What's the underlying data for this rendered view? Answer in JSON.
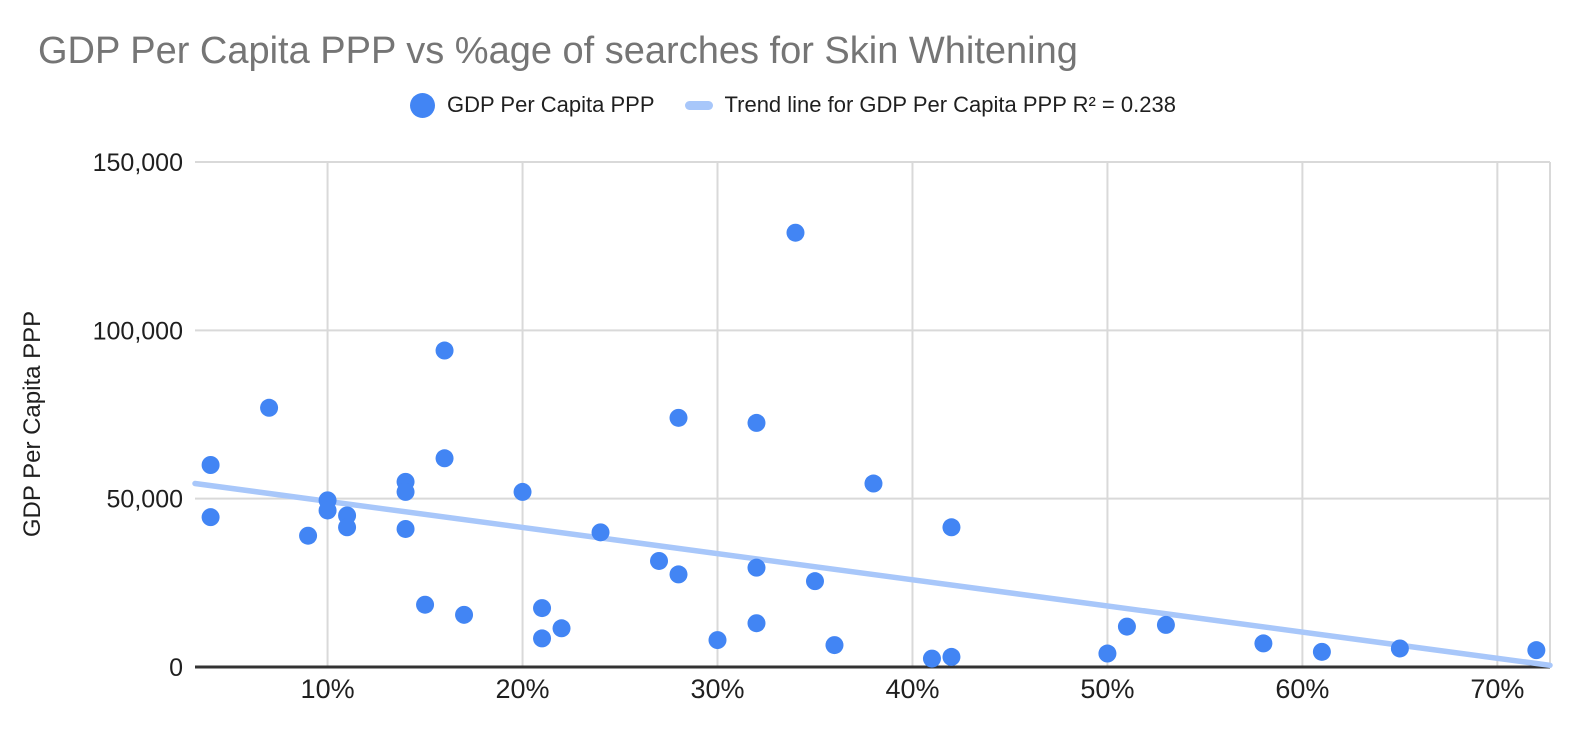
{
  "title": "GDP Per Capita PPP vs %age of searches for Skin Whitening",
  "legend": {
    "items": [
      {
        "type": "point",
        "label": "GDP Per Capita PPP"
      },
      {
        "type": "line",
        "label": "Trend line for GDP Per Capita PPP R² = 0.238"
      }
    ]
  },
  "colors": {
    "point": "#4285F4",
    "trend": "#A8C7FA",
    "title": "#757575",
    "tick_text": "#1f1f1f",
    "gridline": "#d9d9d9",
    "axis_line": "#333333",
    "background": "#ffffff"
  },
  "chart_data": {
    "type": "scatter",
    "title": "GDP Per Capita PPP vs %age of searches for Skin Whitening",
    "xlabel": "",
    "ylabel": "GDP Per Capita PPP",
    "x_unit": "% of searches for skin whitening",
    "xlim_percent": [
      3.2,
      72.7
    ],
    "ylim": [
      0,
      150000
    ],
    "x_ticks_percent": [
      10,
      20,
      30,
      40,
      50,
      60,
      70
    ],
    "x_tick_labels": [
      "10%",
      "20%",
      "30%",
      "40%",
      "50%",
      "60%",
      "70%"
    ],
    "y_ticks": [
      0,
      50000,
      100000,
      150000
    ],
    "y_tick_labels": [
      "0",
      "50,000",
      "100,000",
      "150,000"
    ],
    "grid": true,
    "legend_position": "top",
    "series": [
      {
        "name": "GDP Per Capita PPP",
        "color": "#4285F4",
        "points": [
          [
            4,
            60000
          ],
          [
            4,
            44500
          ],
          [
            7,
            77000
          ],
          [
            9,
            39000
          ],
          [
            10,
            49500
          ],
          [
            10,
            46500
          ],
          [
            11,
            45000
          ],
          [
            11,
            41500
          ],
          [
            14,
            55000
          ],
          [
            14,
            52000
          ],
          [
            14,
            41000
          ],
          [
            15,
            18500
          ],
          [
            16,
            94000
          ],
          [
            16,
            62000
          ],
          [
            17,
            15500
          ],
          [
            20,
            52000
          ],
          [
            21,
            17500
          ],
          [
            21,
            8500
          ],
          [
            22,
            11500
          ],
          [
            24,
            40000
          ],
          [
            27,
            31500
          ],
          [
            28,
            74000
          ],
          [
            28,
            27500
          ],
          [
            30,
            8000
          ],
          [
            32,
            72500
          ],
          [
            32,
            29500
          ],
          [
            32,
            13000
          ],
          [
            34,
            129000
          ],
          [
            35,
            25500
          ],
          [
            36,
            6500
          ],
          [
            38,
            54500
          ],
          [
            41,
            2500
          ],
          [
            42,
            41500
          ],
          [
            42,
            3000
          ],
          [
            50,
            4000
          ],
          [
            51,
            12000
          ],
          [
            53,
            12500
          ],
          [
            58,
            7000
          ],
          [
            61,
            4500
          ],
          [
            65,
            5500
          ],
          [
            72,
            5000
          ]
        ]
      }
    ],
    "trendline": {
      "name": "Trend line for GDP Per Capita PPP",
      "r_squared": 0.238,
      "color": "#A8C7FA",
      "start_xy": [
        3.2,
        54500
      ],
      "end_xy": [
        72.7,
        500
      ]
    }
  }
}
